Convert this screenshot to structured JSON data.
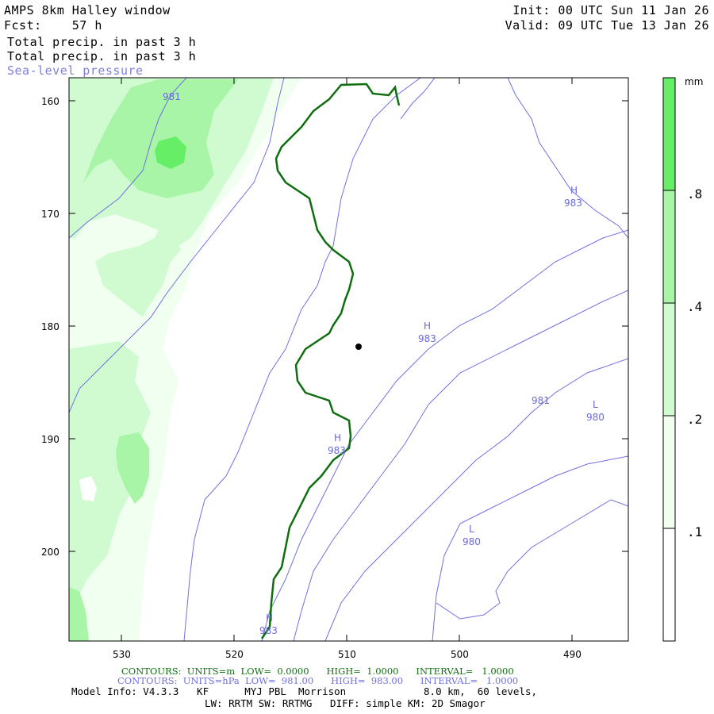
{
  "header": {
    "title": "AMPS 8km Halley window",
    "fcst": "Fcst:    57 h",
    "field1": "Total precip. in past 3 h",
    "field2": "Total precip. in past 3 h",
    "field3": "Sea-level pressure",
    "init": "Init: 00 UTC Sun 11 Jan 26",
    "valid": "Valid: 09 UTC Tue 13 Jan 26"
  },
  "axes": {
    "y_ticks": [
      "160",
      "170",
      "180",
      "190",
      "200"
    ],
    "x_ticks": [
      "530",
      "520",
      "510",
      "500",
      "490"
    ]
  },
  "colorbar": {
    "unit": "mm",
    "labels": [
      ".8",
      ".4",
      ".2",
      ".1"
    ],
    "colors": [
      "#ffffff",
      "#f0fff0",
      "#d0fbd0",
      "#a8f5a8",
      "#66ee66"
    ]
  },
  "pressure_labels": [
    {
      "text": "981"
    },
    {
      "text": "H"
    },
    {
      "text": "983"
    },
    {
      "text": "H"
    },
    {
      "text": "983"
    },
    {
      "text": "981"
    },
    {
      "text": "L"
    },
    {
      "text": "980"
    },
    {
      "text": "H"
    },
    {
      "text": "983"
    },
    {
      "text": "L"
    },
    {
      "text": "980"
    },
    {
      "text": "H"
    },
    {
      "text": "983"
    }
  ],
  "footer": {
    "contours1": "CONTOURS:  UNITS=m  LOW=  0.0000      HIGH=  1.0000      INTERVAL=   1.0000",
    "contours2": "CONTOURS:  UNITS=hPa  LOW=  981.00      HIGH=  983.00      INTERVAL=   1.0000",
    "model1": "Model Info: V4.3.3   KF      MYJ PBL  Morrison             8.0 km,  60 levels,",
    "model2": "LW: RRTM SW: RRTMG   DIFF: simple KM: 2D Smagor"
  },
  "colors": {
    "coast": "#0f6e0f",
    "isobar": "#7070e0",
    "precip_light": "#f0fff0",
    "precip_mid": "#d0fbd0",
    "precip_high": "#a8f5a8",
    "precip_max": "#66ee66"
  }
}
